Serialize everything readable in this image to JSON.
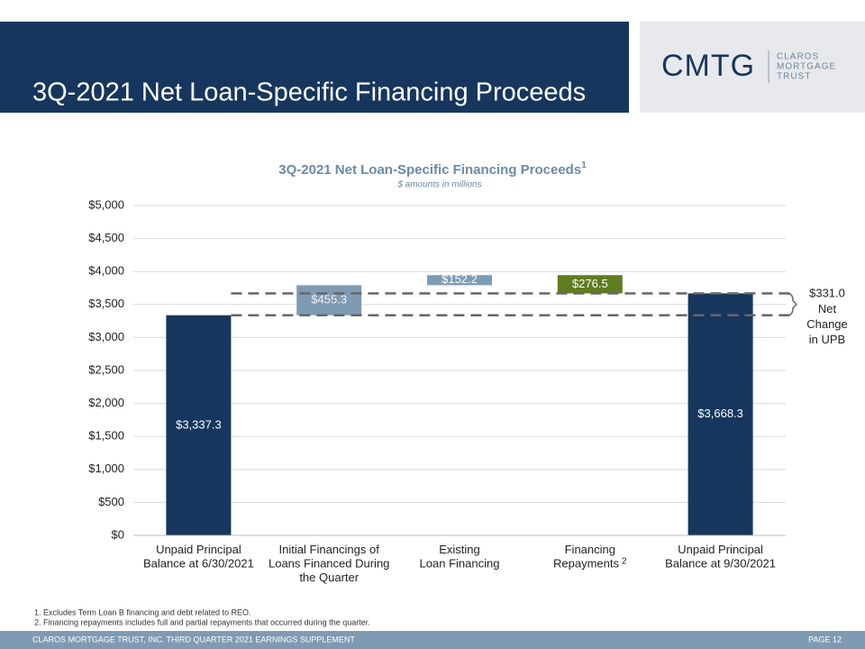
{
  "header": {
    "title": "3Q-2021 Net Loan-Specific Financing Proceeds",
    "logo": "CMTG",
    "logo_lines": [
      "CLAROS",
      "MORTGAGE",
      "TRUST"
    ]
  },
  "chart_data": {
    "type": "waterfall",
    "title": "3Q-2021 Net Loan-Specific Financing Proceeds",
    "title_note": "1",
    "subtitle": "$ amounts in millions",
    "categories": [
      [
        "Unpaid Principal",
        "Balance at 6/30/2021"
      ],
      [
        "Initial Financings of",
        "Loans Financed During",
        "the Quarter"
      ],
      [
        "Existing",
        "Loan Financing"
      ],
      [
        "Financing",
        "Repayments"
      ],
      [
        "Unpaid Principal",
        "Balance at 9/30/2021"
      ]
    ],
    "category_notes": [
      null,
      null,
      null,
      "2",
      null
    ],
    "measure": [
      "absolute",
      "relative",
      "relative",
      "relative",
      "absolute"
    ],
    "values": [
      3337.3,
      455.3,
      152.2,
      -276.5,
      3668.3
    ],
    "value_labels": [
      "$3,337.3",
      "$455.3",
      "$152.2",
      "$276.5",
      "$3,668.3"
    ],
    "colors": [
      "#17365d",
      "#7f9bb3",
      "#7f9bb3",
      "#5e7d1f",
      "#17365d"
    ],
    "ylim": [
      0,
      5000
    ],
    "yticks": [
      {
        "value": 0,
        "label": "$0"
      },
      {
        "value": 500,
        "label": "$500"
      },
      {
        "value": 1000,
        "label": "$1,000"
      },
      {
        "value": 1500,
        "label": "$1,500"
      },
      {
        "value": 2000,
        "label": "$2,000"
      },
      {
        "value": 2500,
        "label": "$2,500"
      },
      {
        "value": 3000,
        "label": "$3,000"
      },
      {
        "value": 3500,
        "label": "$3,500"
      },
      {
        "value": 4000,
        "label": "$4,000"
      },
      {
        "value": 4500,
        "label": "$4,500"
      },
      {
        "value": 5000,
        "label": "$5,000"
      }
    ],
    "grid": true,
    "annotation": {
      "value": 331.0,
      "label": "$331.0",
      "text": [
        "Net",
        "Change",
        "in UPB"
      ]
    }
  },
  "footnotes": [
    "1.  Excludes Term Loan B financing and debt related to REO.",
    "2.  Financing repayments includes full and partial repayments that occurred during the quarter."
  ],
  "footer": {
    "text": "CLAROS MORTGAGE TRUST, INC. THIRD QUARTER 2021 EARNINGS SUPPLEMENT",
    "page": "PAGE 12"
  }
}
